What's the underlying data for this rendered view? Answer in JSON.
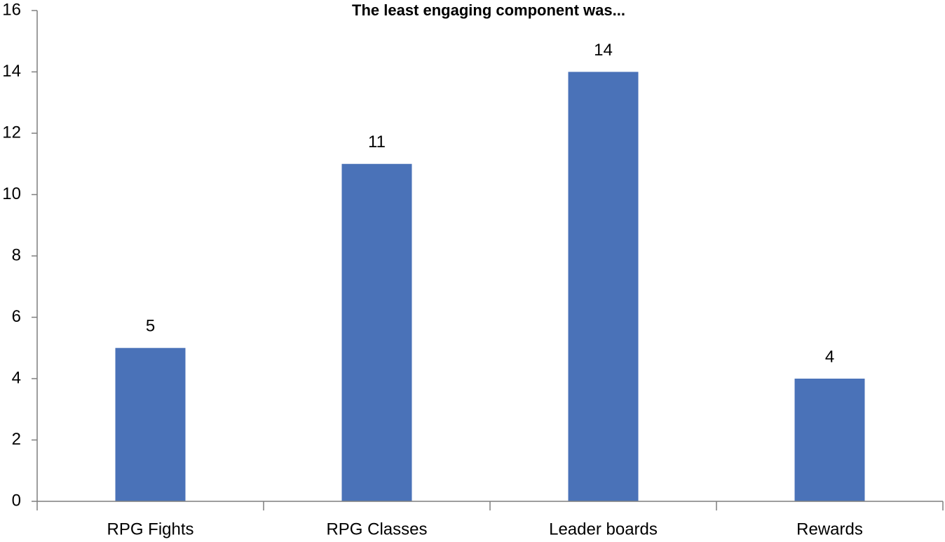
{
  "chart_data": {
    "type": "bar",
    "title": "The least engaging component was...",
    "categories": [
      "RPG Fights",
      "RPG Classes",
      "Leader boards",
      "Rewards"
    ],
    "values": [
      5,
      11,
      14,
      4
    ],
    "color": "#4a72b8",
    "ylim": [
      0,
      16
    ],
    "yticks": [
      0,
      2,
      4,
      6,
      8,
      10,
      12,
      14,
      16
    ],
    "grid": false
  }
}
